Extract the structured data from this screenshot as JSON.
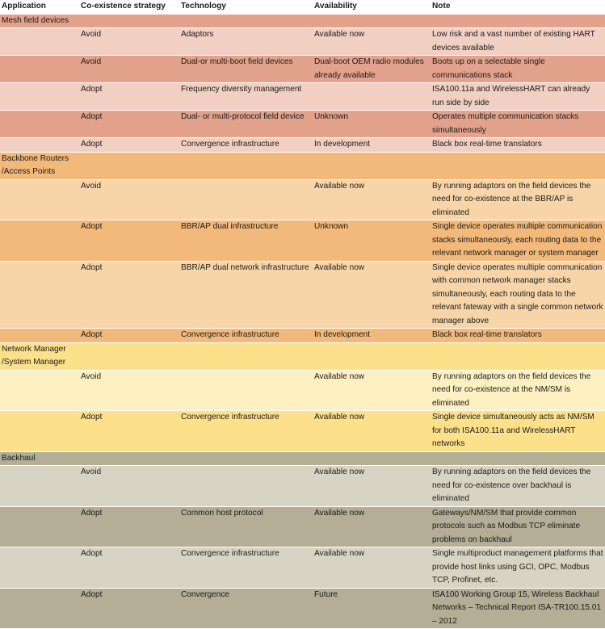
{
  "headers": [
    "Application",
    "Co-existence strategy",
    "Technology",
    "Availability",
    "Note"
  ],
  "groups": [
    {
      "title": "Mesh field devices",
      "header_color": "#e3a28c",
      "colors": [
        "#f1cfc2",
        "#e3a28c"
      ],
      "rows": [
        {
          "strategy": "Avoid",
          "technology": "Adaptors",
          "availability": "Available now",
          "note": "Low risk and a vast number of existing HART devices available"
        },
        {
          "strategy": "Avoid",
          "technology": "Dual-or multi-boot field devices",
          "availability": "Dual-boot OEM radio modules already available",
          "note": "Boots up on a selectable single communications stack"
        },
        {
          "strategy": "Adopt",
          "technology": "Frequency diversity management",
          "availability": "",
          "note": "ISA100.11a and WirelessHART can already run side by side"
        },
        {
          "strategy": "Adopt",
          "technology": "Dual- or multi-protocol field device",
          "availability": "Unknown",
          "note": "Operates multiple communication stacks simultaneously"
        },
        {
          "strategy": "Adopt",
          "technology": "Convergence infrastructure",
          "availability": "In development",
          "note": "Black box real-time translators"
        }
      ]
    },
    {
      "title": "Backbone Routers /Access Points",
      "header_color": "#f2b97b",
      "colors": [
        "#f7d5a8",
        "#f2b97b"
      ],
      "rows": [
        {
          "strategy": "Avoid",
          "technology": "",
          "availability": "Available now",
          "note": "By running adaptors on the field devices the need for co-existence at the BBR/AP is eliminated"
        },
        {
          "strategy": "Adopt",
          "technology": "BBR/AP dual infrastructure",
          "availability": "Unknown",
          "note": "Single device operates multiple communication stacks simultaneously, each routing data to the relevant network manager or system manager"
        },
        {
          "strategy": "Adopt",
          "technology": "BBR/AP dual network infrastructure",
          "availability": "Available now",
          "note": "Single device operates multiple communication with common network manager stacks simultaneously, each routing data to the relevant fateway with a single common network manager above"
        },
        {
          "strategy": "Adopt",
          "technology": "Convergence infrastructure",
          "availability": "In development",
          "note": "Black box real-time translators"
        }
      ]
    },
    {
      "title": "Network Manager /System Manager",
      "header_color": "#fde08a",
      "colors": [
        "#fef0c0",
        "#fde08a"
      ],
      "rows": [
        {
          "strategy": "Avoid",
          "technology": "",
          "availability": "Available now",
          "note": "By running adaptors on the field devices the need for co-existence at the NM/SM is eliminated"
        },
        {
          "strategy": "Adopt",
          "technology": "Convergence infrastructure",
          "availability": "Available now",
          "note": "Single device simultaneously acts as NM/SM for both ISA100.11a and WirelessHART networks"
        }
      ]
    },
    {
      "title": "Backhaul",
      "header_color": "#b3ae95",
      "colors": [
        "#d8d4c4",
        "#b3ae95"
      ],
      "rows": [
        {
          "strategy": "Avoid",
          "technology": "",
          "availability": "Available now",
          "note": "By running adaptors on the field devices the need for co-existence over backhaul is eliminated"
        },
        {
          "strategy": "Adopt",
          "technology": "Common host protocol",
          "availability": "Available now",
          "note": "Gateways/NM/SM that provide common protocols such as Modbus TCP eliminate problems on backhaul"
        },
        {
          "strategy": "Adopt",
          "technology": "Convergence infrastructure",
          "availability": "Available now",
          "note": "Single multiproduct management platforms that provide host links using GCI, OPC, Modbus TCP, Profinet, etc."
        },
        {
          "strategy": "Adopt",
          "technology": "Convergence",
          "availability": "Future",
          "note": "ISA100 Working Group 15, Wireless Backhaul Networks – Technical Report ISA-TR100.15.01 – 2012"
        }
      ]
    }
  ]
}
